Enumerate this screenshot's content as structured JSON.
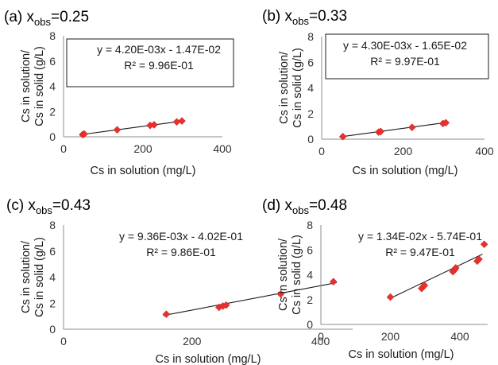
{
  "chart_data": [
    {
      "type": "scatter",
      "panel": "(a)",
      "title_prefix": "(a) x",
      "title_sub": "obs",
      "title_suffix": "=0.25",
      "xlabel": "Cs in solution (mg/L)",
      "ylabel_line1": "Cs in solution/",
      "ylabel_line2": "Cs in solid (g/L)",
      "xlim": [
        0,
        400
      ],
      "ylim": [
        0,
        8
      ],
      "xticks": [
        "0",
        "200",
        "400"
      ],
      "yticks": [
        "0",
        "2",
        "4",
        "6",
        "8"
      ],
      "frame": true,
      "points": [
        {
          "x": 48,
          "y": 0.17
        },
        {
          "x": 52,
          "y": 0.22
        },
        {
          "x": 135,
          "y": 0.55
        },
        {
          "x": 218,
          "y": 0.9
        },
        {
          "x": 228,
          "y": 0.95
        },
        {
          "x": 285,
          "y": 1.18
        },
        {
          "x": 298,
          "y": 1.25
        }
      ],
      "trendline": {
        "slope": 0.0042,
        "intercept": -0.0147,
        "x_range": [
          45,
          302
        ]
      },
      "equation": "y = 4.20E-03x - 1.47E-02",
      "r2": "R² = 9.96E-01"
    },
    {
      "type": "scatter",
      "panel": "(b)",
      "title_prefix": "(b) x",
      "title_sub": "obs",
      "title_suffix": "=0.33",
      "xlabel": "Cs in solution (mg/L)",
      "ylabel_line1": "Cs in solution/",
      "ylabel_line2": "Cs in solid (g/L)",
      "xlim": [
        0,
        400
      ],
      "ylim": [
        0,
        8
      ],
      "xticks": [
        "0",
        "200",
        "400"
      ],
      "yticks": [
        "0",
        "2",
        "4",
        "6",
        "8"
      ],
      "frame": true,
      "points": [
        {
          "x": 52,
          "y": 0.2
        },
        {
          "x": 140,
          "y": 0.55
        },
        {
          "x": 145,
          "y": 0.6
        },
        {
          "x": 222,
          "y": 0.92
        },
        {
          "x": 298,
          "y": 1.22
        },
        {
          "x": 305,
          "y": 1.28
        }
      ],
      "trendline": {
        "slope": 0.0043,
        "intercept": -0.0165,
        "x_range": [
          48,
          308
        ]
      },
      "equation": "y = 4.30E-03x - 1.65E-02",
      "r2": "R² = 9.97E-01"
    },
    {
      "type": "scatter",
      "panel": "(c)",
      "title_prefix": "(c) x",
      "title_sub": "obs",
      "title_suffix": "=0.43",
      "xlabel": "Cs in solution (mg/L)",
      "ylabel_line1": "Cs in solution/",
      "ylabel_line2": "Cs in solid (g/L)",
      "xlim": [
        0,
        450
      ],
      "ylim": [
        0,
        8
      ],
      "xticks": [
        "0",
        "200",
        "400"
      ],
      "yticks": [
        "0",
        "2",
        "4",
        "6",
        "8"
      ],
      "frame": false,
      "points": [
        {
          "x": 160,
          "y": 1.15
        },
        {
          "x": 242,
          "y": 1.68
        },
        {
          "x": 248,
          "y": 1.78
        },
        {
          "x": 253,
          "y": 1.85
        },
        {
          "x": 338,
          "y": 2.7
        },
        {
          "x": 420,
          "y": 3.65
        }
      ],
      "trendline": {
        "slope": 0.00936,
        "intercept": -0.402,
        "x_range": [
          155,
          425
        ]
      },
      "equation": "y = 9.36E-03x - 4.02E-01",
      "r2": "R² = 9.86E-01"
    },
    {
      "type": "scatter",
      "panel": "(d)",
      "title_prefix": "(d) x",
      "title_sub": "obs",
      "title_suffix": "=0.48",
      "xlabel": "Cs in solution (mg/L)",
      "ylabel_line1": "Cs in solution/",
      "ylabel_line2": "Cs in solid (g/L)",
      "xlim": [
        0,
        480
      ],
      "ylim": [
        0,
        8
      ],
      "xticks": [
        "0",
        "200",
        "400"
      ],
      "yticks": [
        "0",
        "2",
        "4",
        "6",
        "8"
      ],
      "frame": false,
      "points": [
        {
          "x": 200,
          "y": 2.2
        },
        {
          "x": 290,
          "y": 2.9
        },
        {
          "x": 295,
          "y": 3.05
        },
        {
          "x": 298,
          "y": 3.15
        },
        {
          "x": 380,
          "y": 4.25
        },
        {
          "x": 385,
          "y": 4.4
        },
        {
          "x": 388,
          "y": 4.55
        },
        {
          "x": 450,
          "y": 5.1
        },
        {
          "x": 455,
          "y": 5.25
        },
        {
          "x": 470,
          "y": 6.45
        }
      ],
      "trendline": {
        "slope": 0.0134,
        "intercept": -0.574,
        "x_range": [
          195,
          465
        ]
      },
      "equation": "y = 1.34E-02x - 5.74E-01",
      "r2": "R² = 9.47E-01"
    }
  ],
  "colors": {
    "marker": "#e8312f",
    "trendline": "#1a1a1a",
    "axis": "#8c8c8c",
    "frame": "#1a1a1a"
  }
}
